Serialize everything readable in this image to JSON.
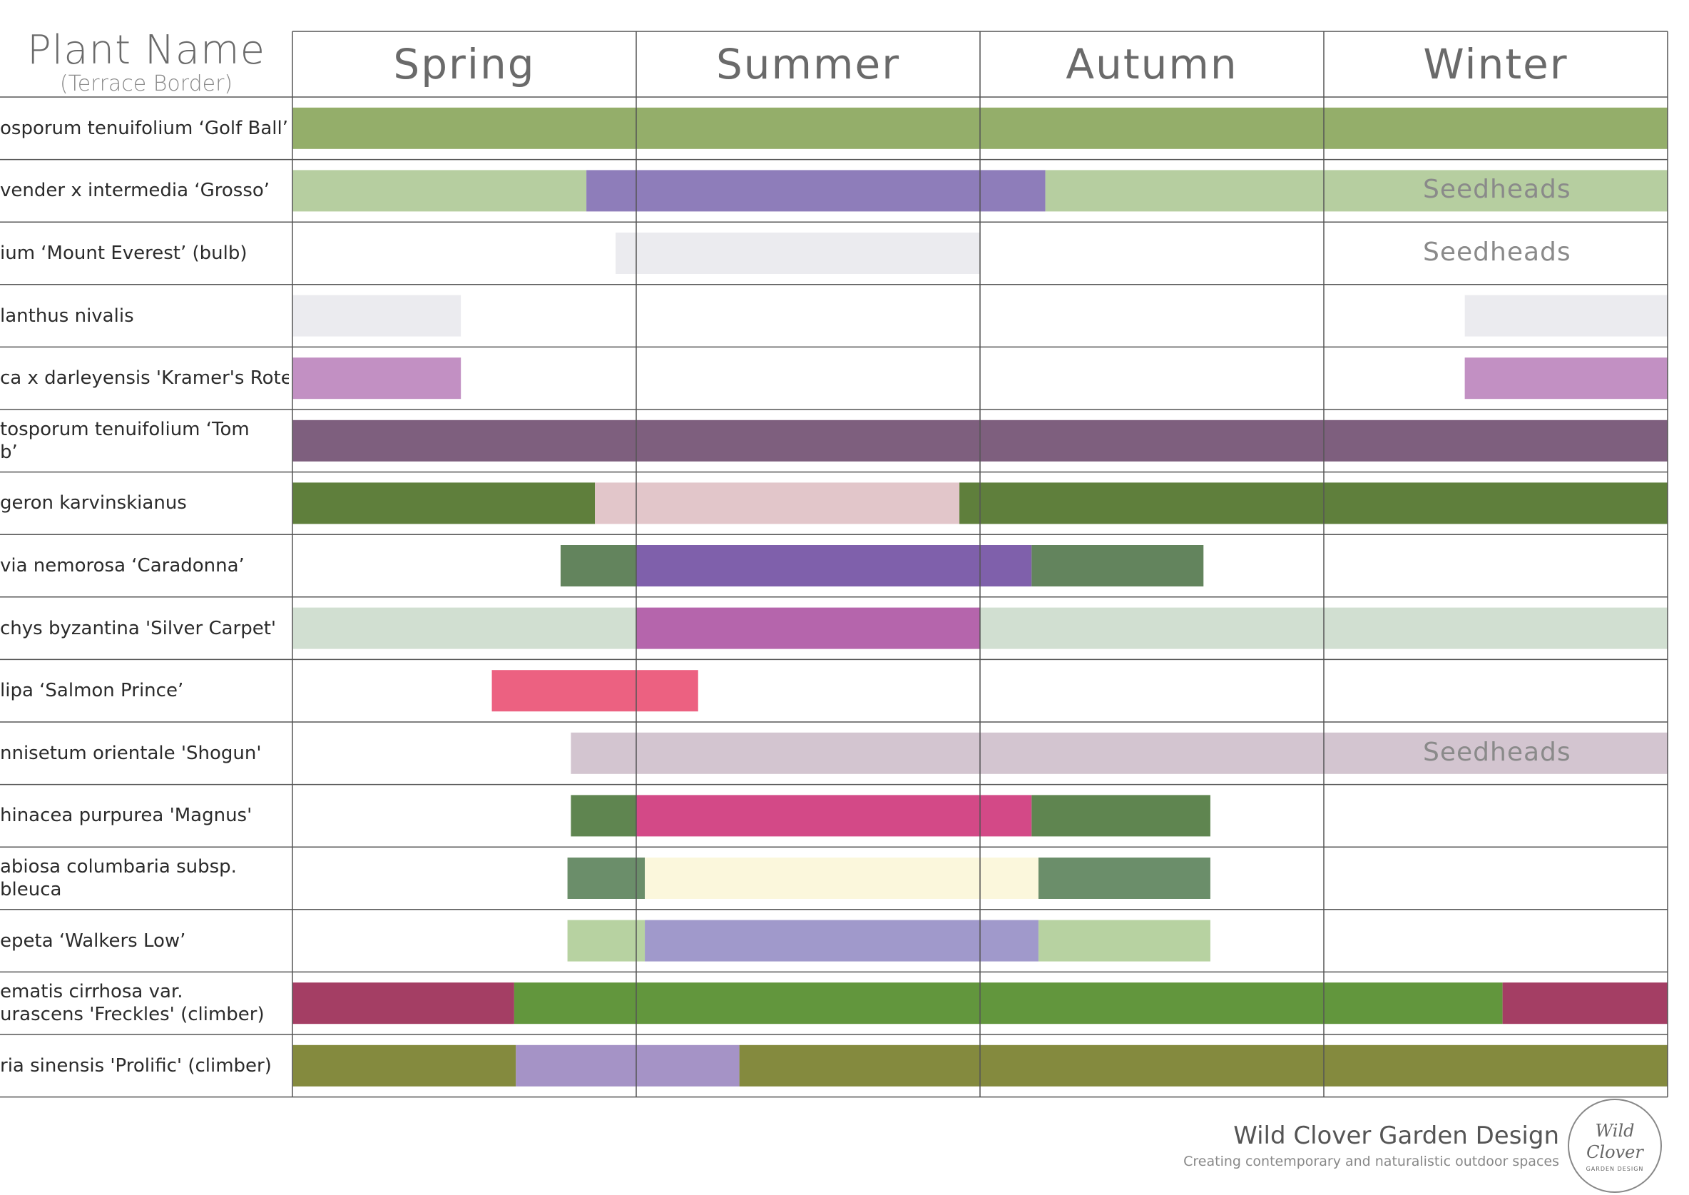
{
  "header": {
    "title": "Plant Name",
    "subtitle": "(Terrace Border)",
    "seasons": [
      "Spring",
      "Summer",
      "Autumn",
      "Winter"
    ]
  },
  "brand": {
    "name": "Wild Clover Garden Design",
    "tagline": "Creating contemporary and naturalistic outdoor spaces",
    "logo_line1": "Wild",
    "logo_line2": "Clover",
    "logo_small": "GARDEN DESIGN"
  },
  "colors": {
    "grid": "#555555",
    "text": "#2b2b2b",
    "header_text": "#6a6a6a"
  },
  "chart_data": {
    "type": "table",
    "x_axis": "season position (0 = start of Spring, 4 = end of Winter)",
    "categories": [
      "Spring",
      "Summer",
      "Autumn",
      "Winter"
    ],
    "xlim": [
      0,
      4
    ],
    "rows": [
      {
        "name": "osporum tenuifolium ‘Golf Ball’",
        "segments": [
          {
            "start": 0.0,
            "end": 4.0,
            "color": "#94ae6a"
          }
        ]
      },
      {
        "name": "vender x intermedia ‘Grosso’",
        "segments": [
          {
            "start": 0.0,
            "end": 0.855,
            "color": "#b6cea0"
          },
          {
            "start": 0.855,
            "end": 2.19,
            "color": "#8e7dba"
          },
          {
            "start": 2.19,
            "end": 4.0,
            "color": "#b6cea0"
          }
        ],
        "label": "Seedheads"
      },
      {
        "name": "ium ‘Mount Everest’ (bulb)",
        "segments": [
          {
            "start": 0.94,
            "end": 2.0,
            "color": "#ebebef"
          }
        ],
        "label": "Seedheads"
      },
      {
        "name": "lanthus nivalis",
        "segments": [
          {
            "start": 0.0,
            "end": 0.49,
            "color": "#ebebef"
          },
          {
            "start": 3.41,
            "end": 4.0,
            "color": "#ebebef"
          }
        ]
      },
      {
        "name": "ca x darleyensis 'Kramer's Rote'",
        "segments": [
          {
            "start": 0.0,
            "end": 0.49,
            "color": "#c290c3"
          },
          {
            "start": 3.41,
            "end": 4.0,
            "color": "#c290c3"
          }
        ]
      },
      {
        "name": "tosporum tenuifolium ‘Tom\nb’",
        "segments": [
          {
            "start": 0.0,
            "end": 4.0,
            "color": "#7e5f7e"
          }
        ]
      },
      {
        "name": "geron karvinskianus",
        "segments": [
          {
            "start": 0.0,
            "end": 0.88,
            "color": "#5f7f3c"
          },
          {
            "start": 0.88,
            "end": 1.94,
            "color": "#e2c6ca"
          },
          {
            "start": 1.94,
            "end": 4.0,
            "color": "#5f7f3c"
          }
        ]
      },
      {
        "name": "via nemorosa ‘Caradonna’",
        "segments": [
          {
            "start": 0.78,
            "end": 1.0,
            "color": "#63845d"
          },
          {
            "start": 1.0,
            "end": 2.15,
            "color": "#7f60ab"
          },
          {
            "start": 2.15,
            "end": 2.65,
            "color": "#63845d"
          }
        ]
      },
      {
        "name": "chys byzantina 'Silver Carpet'",
        "segments": [
          {
            "start": 0.0,
            "end": 1.0,
            "color": "#d1dfd1"
          },
          {
            "start": 1.0,
            "end": 2.0,
            "color": "#b565ac"
          },
          {
            "start": 2.0,
            "end": 4.0,
            "color": "#d1dfd1"
          }
        ]
      },
      {
        "name": "lipa ‘Salmon Prince’",
        "segments": [
          {
            "start": 0.58,
            "end": 1.18,
            "color": "#ec6181"
          }
        ]
      },
      {
        "name": "nnisetum orientale 'Shogun'",
        "segments": [
          {
            "start": 0.81,
            "end": 4.0,
            "color": "#d3c5d0"
          }
        ],
        "label": "Seedheads"
      },
      {
        "name": "hinacea purpurea 'Magnus'",
        "segments": [
          {
            "start": 0.81,
            "end": 1.0,
            "color": "#5f8550"
          },
          {
            "start": 1.0,
            "end": 2.15,
            "color": "#d34987"
          },
          {
            "start": 2.15,
            "end": 2.67,
            "color": "#5f8550"
          }
        ]
      },
      {
        "name": "abiosa columbaria subsp.\nbleuca",
        "segments": [
          {
            "start": 0.8,
            "end": 1.025,
            "color": "#6b8e6a"
          },
          {
            "start": 1.025,
            "end": 2.17,
            "color": "#fbf7dc"
          },
          {
            "start": 2.17,
            "end": 2.67,
            "color": "#6b8e6a"
          }
        ]
      },
      {
        "name": "epeta ‘Walkers Low’",
        "segments": [
          {
            "start": 0.8,
            "end": 1.025,
            "color": "#b7d2a1"
          },
          {
            "start": 1.025,
            "end": 2.17,
            "color": "#a099cb"
          },
          {
            "start": 2.17,
            "end": 2.67,
            "color": "#b7d2a1"
          }
        ]
      },
      {
        "name": "ematis cirrhosa var.\nurascens 'Freckles' (climber)",
        "segments": [
          {
            "start": 0.0,
            "end": 0.645,
            "color": "#a43e64"
          },
          {
            "start": 0.645,
            "end": 3.52,
            "color": "#62963d"
          },
          {
            "start": 3.52,
            "end": 4.0,
            "color": "#a43e64"
          }
        ]
      },
      {
        "name": "ria sinensis 'Prolific' (climber)",
        "segments": [
          {
            "start": 0.0,
            "end": 0.65,
            "color": "#848a3e"
          },
          {
            "start": 0.65,
            "end": 1.3,
            "color": "#a593c6"
          },
          {
            "start": 1.3,
            "end": 4.0,
            "color": "#848a3e"
          }
        ]
      }
    ]
  }
}
